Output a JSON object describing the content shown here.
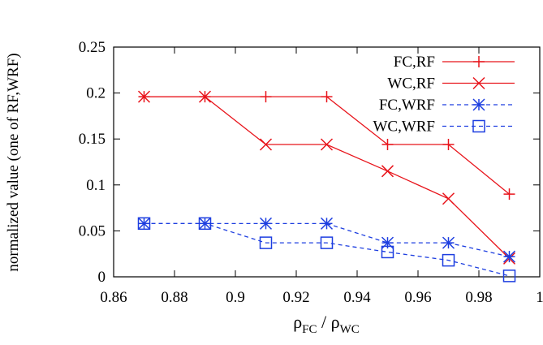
{
  "chart_data": {
    "type": "line",
    "ylabel": "normalized value (one of RF,WRF)",
    "xlabel": {
      "base": "ρ",
      "sub1": "FC",
      "sep": " / ",
      "sub2": "WC"
    },
    "xlim": [
      0.86,
      1.0
    ],
    "ylim": [
      0,
      0.25
    ],
    "xticks": [
      0.86,
      0.88,
      0.9,
      0.92,
      0.94,
      0.96,
      0.98,
      1.0
    ],
    "xtick_labels": [
      "0.86",
      "0.88",
      "0.9",
      "0.92",
      "0.94",
      "0.96",
      "0.98",
      "1"
    ],
    "yticks": [
      0,
      0.05,
      0.1,
      0.15,
      0.2,
      0.25
    ],
    "ytick_labels": [
      "0",
      "0.05",
      "0.1",
      "0.15",
      "0.2",
      "0.25"
    ],
    "grid": false,
    "legend_position": "top-right",
    "series": [
      {
        "name": "FC,RF",
        "color": "#e8141b",
        "dash": "solid",
        "marker": "plus",
        "x": [
          0.87,
          0.89,
          0.91,
          0.93,
          0.95,
          0.97,
          0.99
        ],
        "y": [
          0.196,
          0.196,
          0.196,
          0.196,
          0.144,
          0.144,
          0.09
        ]
      },
      {
        "name": "WC,RF",
        "color": "#e8141b",
        "dash": "solid",
        "marker": "cross",
        "x": [
          0.87,
          0.89,
          0.91,
          0.93,
          0.95,
          0.97,
          0.99
        ],
        "y": [
          0.196,
          0.196,
          0.144,
          0.144,
          0.115,
          0.085,
          0.02
        ]
      },
      {
        "name": "FC,WRF",
        "color": "#1d3ee0",
        "dash": "dashed",
        "marker": "star",
        "x": [
          0.87,
          0.89,
          0.91,
          0.93,
          0.95,
          0.97,
          0.99
        ],
        "y": [
          0.058,
          0.058,
          0.058,
          0.058,
          0.037,
          0.037,
          0.022
        ]
      },
      {
        "name": "WC,WRF",
        "color": "#1d3ee0",
        "dash": "dashed",
        "marker": "square",
        "x": [
          0.87,
          0.89,
          0.91,
          0.93,
          0.95,
          0.97,
          0.99
        ],
        "y": [
          0.058,
          0.058,
          0.037,
          0.037,
          0.027,
          0.018,
          0.001
        ]
      }
    ]
  }
}
